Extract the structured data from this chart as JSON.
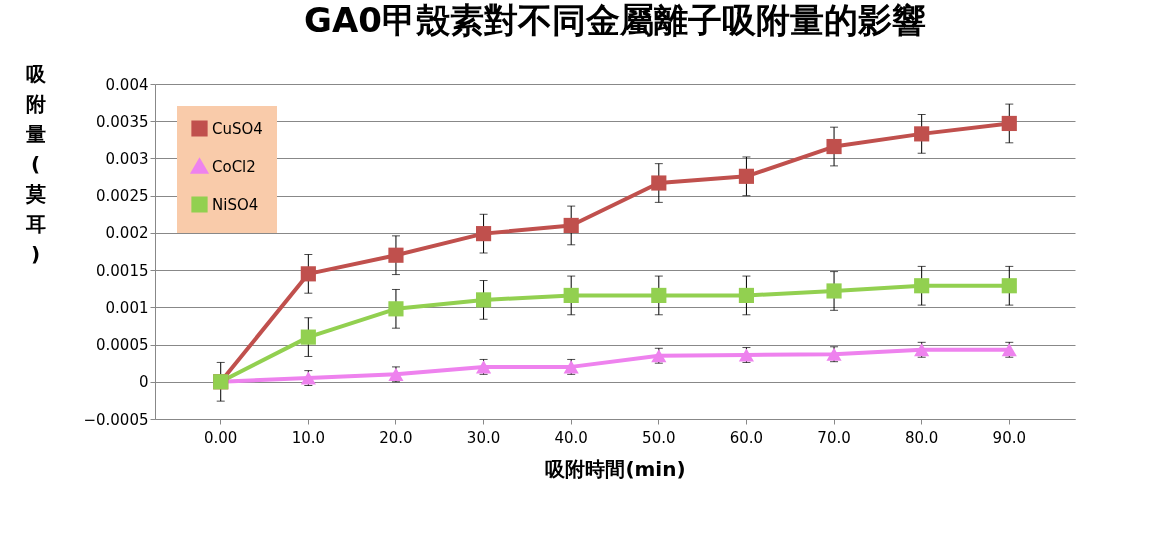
{
  "chart_data": {
    "type": "line",
    "title": "GA0甲殼素對不同金屬離子吸附量的影響",
    "xlabel": "吸附時間(min)",
    "ylabel": "吸附量(莫耳)",
    "categories": [
      "0.00",
      "10.0",
      "20.0",
      "30.0",
      "40.0",
      "50.0",
      "60.0",
      "70.0",
      "80.0",
      "90.0"
    ],
    "series": [
      {
        "name": "CuSO4",
        "color": "#c0504d",
        "marker": "square",
        "values": [
          0,
          0.00145,
          0.0017,
          0.00199,
          0.0021,
          0.00267,
          0.00276,
          0.00316,
          0.00333,
          0.00347
        ],
        "errors": [
          0.00026,
          0.00026,
          0.00026,
          0.00026,
          0.00026,
          0.00026,
          0.00026,
          0.00026,
          0.00026,
          0.00026
        ]
      },
      {
        "name": "CoCl2",
        "color": "#ee82ee",
        "marker": "triangle",
        "values": [
          0,
          5e-05,
          0.0001,
          0.0002,
          0.0002,
          0.00035,
          0.00036,
          0.00037,
          0.00043,
          0.00043
        ],
        "errors": [
          null,
          0.0001,
          0.0001,
          0.0001,
          0.0001,
          0.0001,
          0.0001,
          0.0001,
          0.0001,
          0.0001
        ]
      },
      {
        "name": "NiSO4",
        "color": "#92d050",
        "marker": "square",
        "values": [
          0,
          0.0006,
          0.00098,
          0.0011,
          0.00116,
          0.00116,
          0.00116,
          0.00122,
          0.00129,
          0.00129
        ],
        "errors": [
          null,
          0.00026,
          0.00026,
          0.00026,
          0.00026,
          0.00026,
          0.00026,
          0.00026,
          0.00026,
          0.00026
        ]
      }
    ],
    "ylim": [
      -0.0005,
      0.004
    ],
    "yticks": [
      -0.0005,
      0,
      0.0005,
      0.001,
      0.0015,
      0.002,
      0.0025,
      0.003,
      0.0035,
      0.004
    ],
    "grid": "y",
    "legend": "top left"
  }
}
